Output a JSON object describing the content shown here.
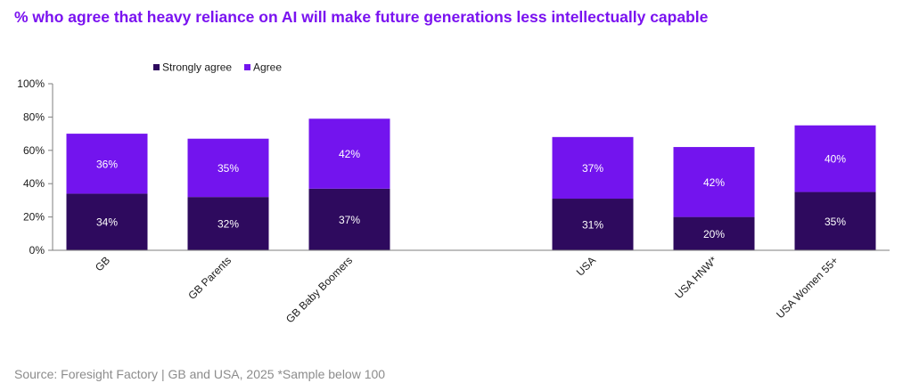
{
  "title": "% who agree that heavy reliance on AI will make future generations less intellectually capable",
  "source": "Source: Foresight Factory | GB and USA, 2025 *Sample below 100",
  "colors": {
    "strongly_agree": "#2e0a5e",
    "agree": "#7314ee",
    "title": "#7a12f0"
  },
  "chart_data": {
    "type": "bar",
    "stacked": true,
    "title": "% who agree that heavy reliance on AI will make future generations less intellectually capable",
    "categories": [
      "GB",
      "GB Parents",
      "GB Baby Boomers",
      "USA",
      "USA HNW*",
      "USA Women 55+"
    ],
    "series": [
      {
        "name": "Strongly agree",
        "values": [
          34,
          32,
          37,
          31,
          20,
          35
        ],
        "labels": [
          "34%",
          "32%",
          "37%",
          "31%",
          "20%",
          "35%"
        ]
      },
      {
        "name": "Agree",
        "values": [
          36,
          35,
          42,
          37,
          42,
          40
        ],
        "labels": [
          "36%",
          "35%",
          "42%",
          "37%",
          "42%",
          "40%"
        ]
      }
    ],
    "ylim": [
      0,
      100
    ],
    "yticks": [
      "0%",
      "20%",
      "40%",
      "60%",
      "80%",
      "100%"
    ],
    "legend_position": "top-left",
    "grid": false
  }
}
